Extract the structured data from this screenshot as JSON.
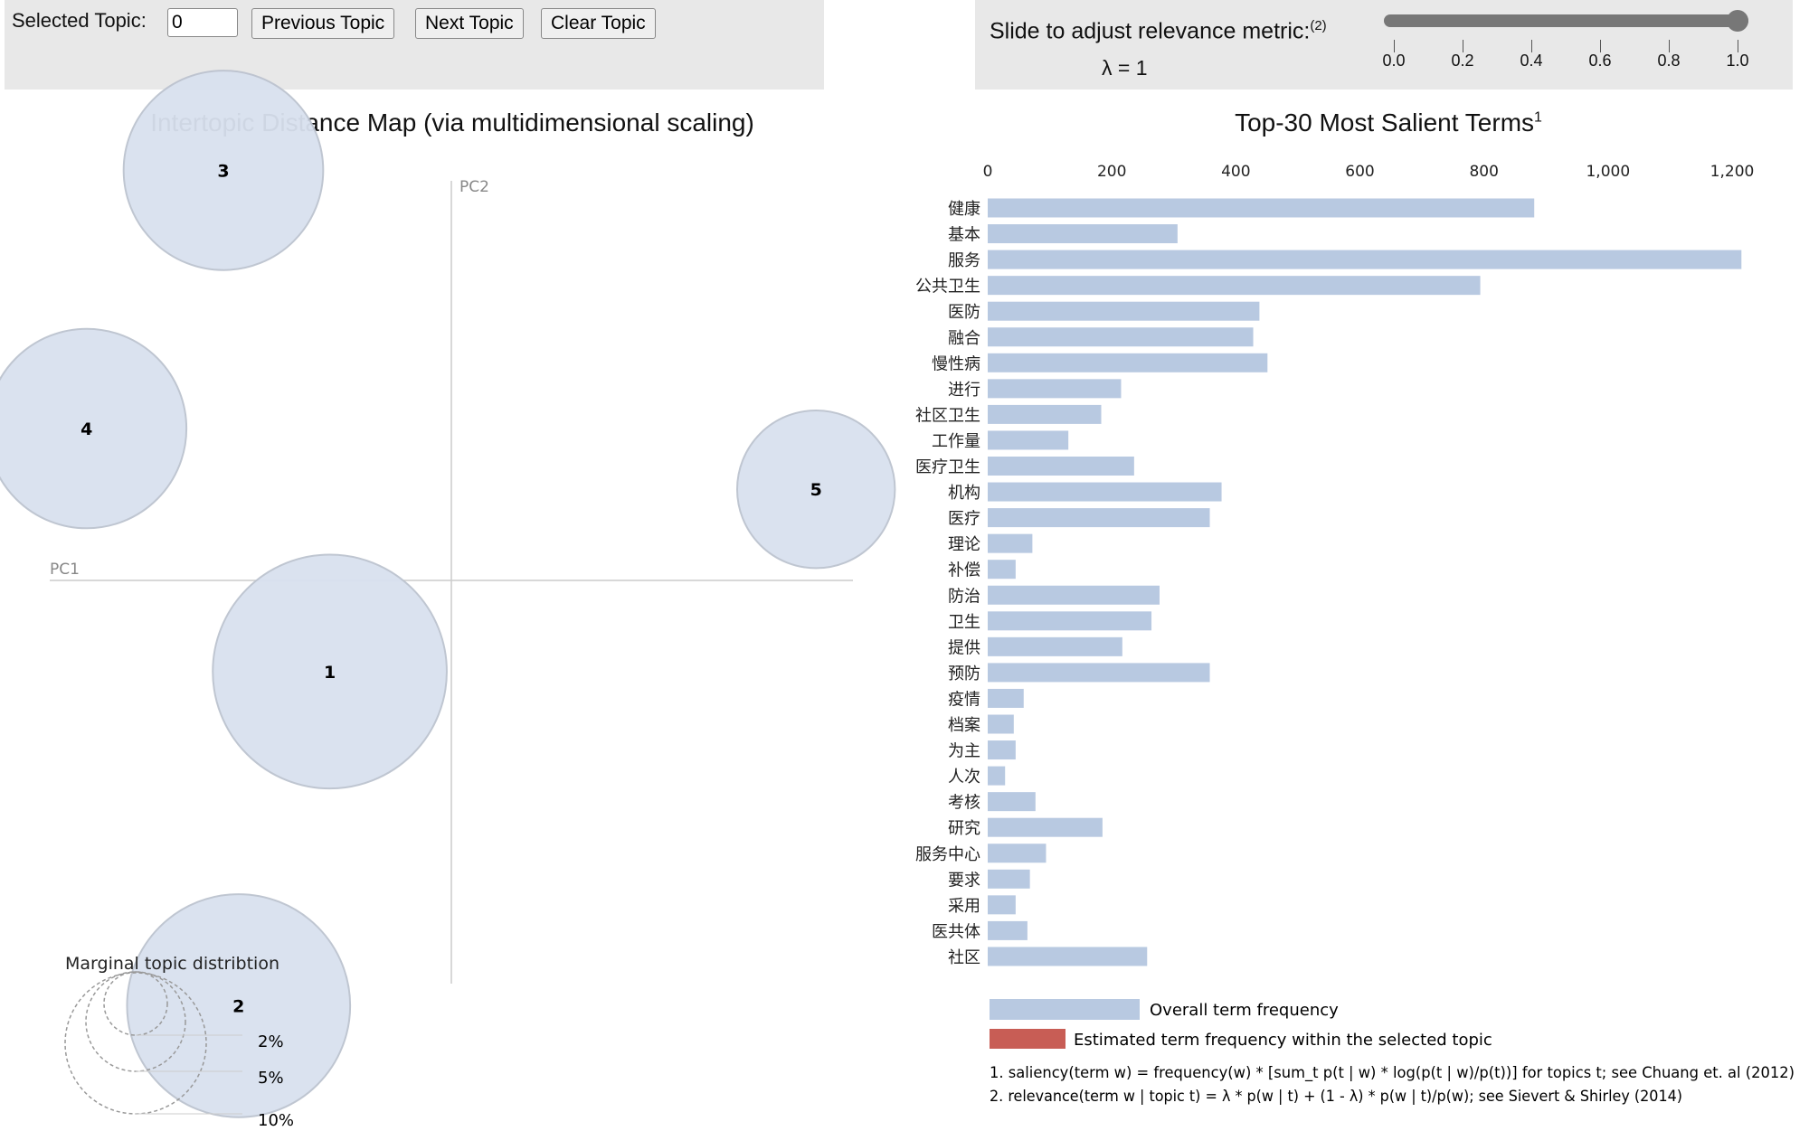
{
  "controls": {
    "selected_topic_label": "Selected Topic:",
    "selected_topic_value": "0",
    "previous_label": "Previous Topic",
    "next_label": "Next Topic",
    "clear_label": "Clear Topic",
    "slider_label": "Slide to adjust relevance metric:",
    "slider_footnote": "(2)",
    "lambda_text": "λ = 1",
    "lambda_value": 1,
    "slider_ticks": [
      "0.0",
      "0.2",
      "0.4",
      "0.6",
      "0.8",
      "1.0"
    ]
  },
  "colors": {
    "bar": "#b8c9e1",
    "topic_bar": "#c85d55",
    "circle": "#d9e1ef",
    "circle_stroke": "#bcc3cf"
  },
  "chart_data": [
    {
      "type": "scatter",
      "title": "Intertopic Distance Map (via multidimensional scaling)",
      "xlabel": "PC1",
      "ylabel": "PC2",
      "topics": [
        {
          "label": "1",
          "pc1": -0.08,
          "pc2": -0.06,
          "size_pct": 11
        },
        {
          "label": "2",
          "pc1": -0.14,
          "pc2": -0.28,
          "size_pct": 10
        },
        {
          "label": "3",
          "pc1": -0.15,
          "pc2": 0.27,
          "size_pct": 8
        },
        {
          "label": "4",
          "pc1": -0.24,
          "pc2": 0.1,
          "size_pct": 8
        },
        {
          "label": "5",
          "pc1": 0.24,
          "pc2": 0.06,
          "size_pct": 5
        }
      ],
      "legend_title": "Marginal topic distribtion",
      "legend_sizes": [
        "2%",
        "5%",
        "10%"
      ]
    },
    {
      "type": "bar",
      "title": "Top-30 Most Salient Terms",
      "title_footnote": "1",
      "xlim": [
        0,
        1200
      ],
      "xticks": [
        "0",
        "200",
        "400",
        "600",
        "800",
        "1,000",
        "1,200"
      ],
      "categories": [
        "健康",
        "基本",
        "服务",
        "公共卫生",
        "医防",
        "融合",
        "慢性病",
        "进行",
        "社区卫生",
        "工作量",
        "医疗卫生",
        "机构",
        "医疗",
        "理论",
        "补偿",
        "防治",
        "卫生",
        "提供",
        "预防",
        "疫情",
        "档案",
        "为主",
        "人次",
        "考核",
        "研究",
        "服务中心",
        "要求",
        "采用",
        "医共体",
        "社区"
      ],
      "series": [
        {
          "name": "Overall term frequency",
          "values": [
            881,
            306,
            1215,
            794,
            438,
            428,
            451,
            215,
            183,
            130,
            236,
            377,
            358,
            72,
            45,
            277,
            264,
            217,
            358,
            58,
            42,
            45,
            28,
            77,
            185,
            94,
            68,
            45,
            64,
            257
          ]
        }
      ],
      "legend": [
        "Overall term frequency",
        "Estimated term frequency within the selected topic"
      ],
      "footnotes": [
        "1. saliency(term w) = frequency(w) * [sum_t p(t | w) * log(p(t | w)/p(t))] for topics t; see Chuang et. al (2012)",
        "2. relevance(term w | topic t) = λ * p(w | t) + (1 - λ) * p(w | t)/p(w); see Sievert & Shirley (2014)"
      ]
    }
  ]
}
